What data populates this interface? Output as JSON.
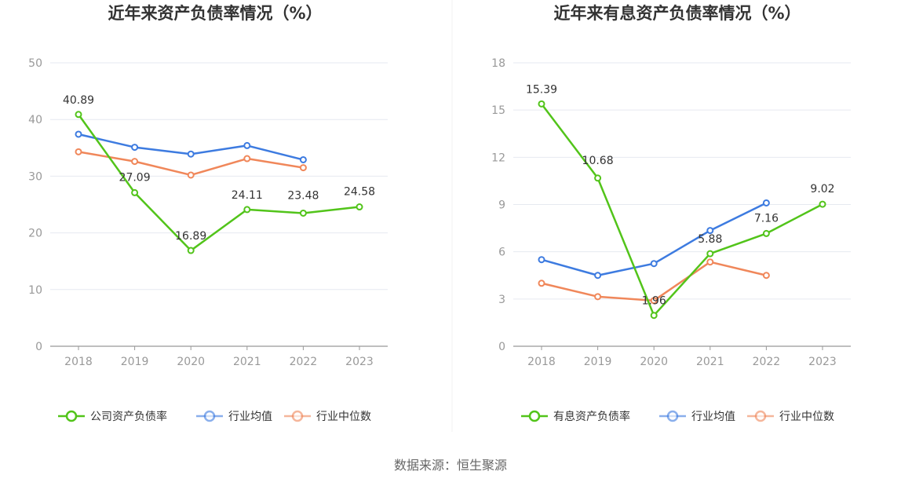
{
  "source": "数据来源：恒生聚源",
  "chart_data": [
    {
      "type": "line",
      "title": "近年来资产负债率情况（%）",
      "categories": [
        "2018",
        "2019",
        "2020",
        "2021",
        "2022",
        "2023"
      ],
      "ylim": [
        0,
        50
      ],
      "yticks": [
        "0",
        "10",
        "20",
        "30",
        "40",
        "50"
      ],
      "grid": true,
      "legend_position": "bottom",
      "series": [
        {
          "name": "公司资产负债率",
          "color": "#52c41a",
          "values": [
            40.89,
            27.09,
            16.89,
            24.11,
            23.48,
            24.58
          ],
          "labels": [
            "40.89",
            "27.09",
            "16.89",
            "24.11",
            "23.48",
            "24.58"
          ]
        },
        {
          "name": "行业均值",
          "color": "#3d7be0",
          "values": [
            37.4,
            35.1,
            33.9,
            35.4,
            32.9,
            null
          ]
        },
        {
          "name": "行业中位数",
          "color": "#f0875a",
          "values": [
            34.3,
            32.6,
            30.2,
            33.1,
            31.5,
            null
          ]
        }
      ]
    },
    {
      "type": "line",
      "title": "近年来有息资产负债率情况（%）",
      "categories": [
        "2018",
        "2019",
        "2020",
        "2021",
        "2022",
        "2023"
      ],
      "ylim": [
        0,
        18
      ],
      "yticks": [
        "0",
        "3",
        "6",
        "9",
        "12",
        "15",
        "18"
      ],
      "grid": true,
      "legend_position": "bottom",
      "series": [
        {
          "name": "有息资产负债率",
          "color": "#52c41a",
          "values": [
            15.39,
            10.68,
            1.96,
            5.88,
            7.16,
            9.02
          ],
          "labels": [
            "15.39",
            "10.68",
            "1.96",
            "5.88",
            "7.16",
            "9.02"
          ]
        },
        {
          "name": "行业均值",
          "color": "#3d7be0",
          "values": [
            5.5,
            4.5,
            5.25,
            7.35,
            9.1,
            null
          ]
        },
        {
          "name": "行业中位数",
          "color": "#f0875a",
          "values": [
            4.0,
            3.15,
            2.9,
            5.35,
            4.5,
            null
          ]
        }
      ]
    }
  ]
}
